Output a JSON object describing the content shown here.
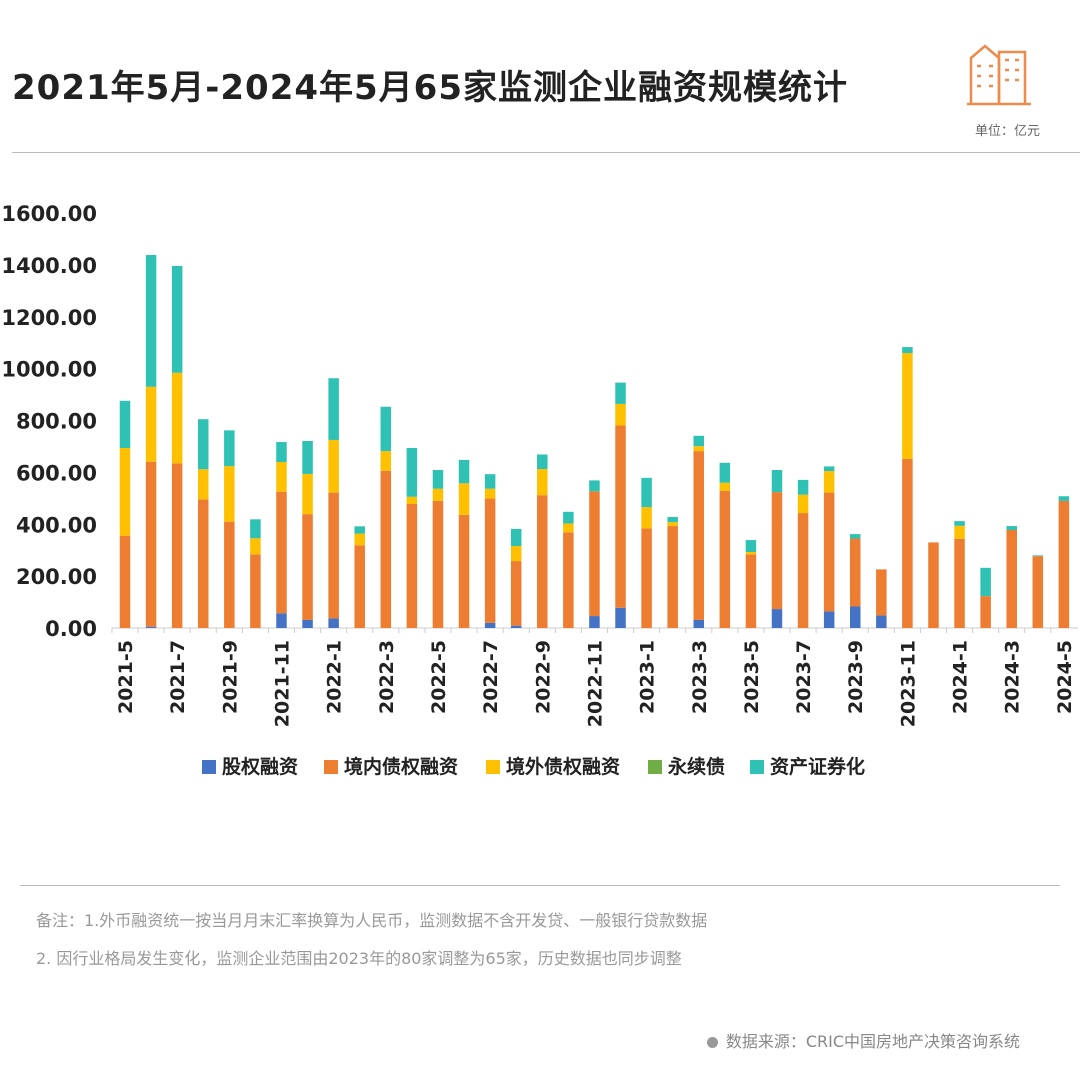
{
  "header": {
    "title": "2021年5月-2024年5月65家监测企业融资规模统计",
    "unit": "单位：亿元",
    "logo_icon": "building-icon"
  },
  "notes": [
    "备注：1.外币融资统一按当月月末汇率换算为人民币，监测数据不含开发贷、一般银行贷款数据",
    "2. 因行业格局发生变化，监测企业范围由2023年的80家调整为65家，历史数据也同步调整"
  ],
  "source": "数据来源：CRIC中国房地产决策咨询系统",
  "chart_data": {
    "type": "bar",
    "stacked": true,
    "title": "2021年5月-2024年5月65家监测企业融资规模统计",
    "ylim": [
      0,
      1600
    ],
    "yticks": [
      "0.00",
      "200.00",
      "400.00",
      "600.00",
      "800.00",
      "1000.00",
      "1200.00",
      "1400.00",
      "1600.00"
    ],
    "grid": false,
    "legend_position": "bottom",
    "categories": [
      "2021-5",
      "2021-6",
      "2021-7",
      "2021-8",
      "2021-9",
      "2021-10",
      "2021-11",
      "2021-12",
      "2022-1",
      "2022-2",
      "2022-3",
      "2022-4",
      "2022-5",
      "2022-6",
      "2022-7",
      "2022-8",
      "2022-9",
      "2022-10",
      "2022-11",
      "2022-12",
      "2023-1",
      "2023-2",
      "2023-3",
      "2023-4",
      "2023-5",
      "2023-6",
      "2023-7",
      "2023-8",
      "2023-9",
      "2023-10",
      "2023-11",
      "2023-12",
      "2024-1",
      "2024-2",
      "2024-3",
      "2024-4",
      "2024-5"
    ],
    "xtick_labels": [
      "2021-5",
      "",
      "2021-7",
      "",
      "2021-9",
      "",
      "2021-11",
      "",
      "2022-1",
      "",
      "2022-3",
      "",
      "2022-5",
      "",
      "2022-7",
      "",
      "2022-9",
      "",
      "2022-11",
      "",
      "2023-1",
      "",
      "2023-3",
      "",
      "2023-5",
      "",
      "2023-7",
      "",
      "2023-9",
      "",
      "2023-11",
      "",
      "2024-1",
      "",
      "2024-3",
      "",
      "2024-5"
    ],
    "series": [
      {
        "name": "股权融资",
        "color": "#4472C4",
        "values": [
          0,
          5,
          0,
          0,
          0,
          0,
          57,
          31,
          37,
          0,
          0,
          0,
          0,
          0,
          20,
          9,
          0,
          0,
          46,
          78,
          0,
          0,
          31,
          0,
          0,
          73,
          0,
          64,
          83,
          48,
          0,
          0,
          0,
          0,
          0,
          0,
          0
        ]
      },
      {
        "name": "境内债权融资",
        "color": "#ED7D31",
        "values": [
          356,
          636,
          635,
          496,
          410,
          284,
          468,
          408,
          485,
          319,
          606,
          478,
          490,
          436,
          479,
          249,
          512,
          369,
          481,
          703,
          384,
          393,
          651,
          529,
          284,
          451,
          443,
          458,
          262,
          178,
          652,
          330,
          344,
          123,
          378,
          277,
          490
        ]
      },
      {
        "name": "境外债权融资",
        "color": "#FFC000",
        "values": [
          338,
          289,
          349,
          116,
          214,
          62,
          115,
          155,
          203,
          45,
          76,
          28,
          47,
          122,
          38,
          58,
          101,
          34,
          0,
          83,
          82,
          15,
          19,
          31,
          9,
          0,
          71,
          83,
          0,
          0,
          408,
          0,
          50,
          0,
          0,
          0,
          0
        ]
      },
      {
        "name": "永续债",
        "color": "#70AD47",
        "values": [
          0,
          0,
          0,
          0,
          0,
          0,
          0,
          0,
          0,
          0,
          0,
          0,
          0,
          0,
          0,
          0,
          0,
          0,
          0,
          0,
          0,
          0,
          0,
          0,
          0,
          0,
          0,
          0,
          0,
          0,
          0,
          0,
          0,
          0,
          0,
          0,
          0
        ]
      },
      {
        "name": "资产证券化",
        "color": "#2EC1B4",
        "values": [
          182,
          508,
          412,
          193,
          138,
          73,
          77,
          127,
          238,
          28,
          171,
          188,
          72,
          90,
          56,
          66,
          56,
          45,
          42,
          82,
          113,
          20,
          40,
          77,
          46,
          85,
          57,
          18,
          17,
          0,
          23,
          0,
          18,
          109,
          15,
          3,
          18
        ]
      }
    ]
  }
}
